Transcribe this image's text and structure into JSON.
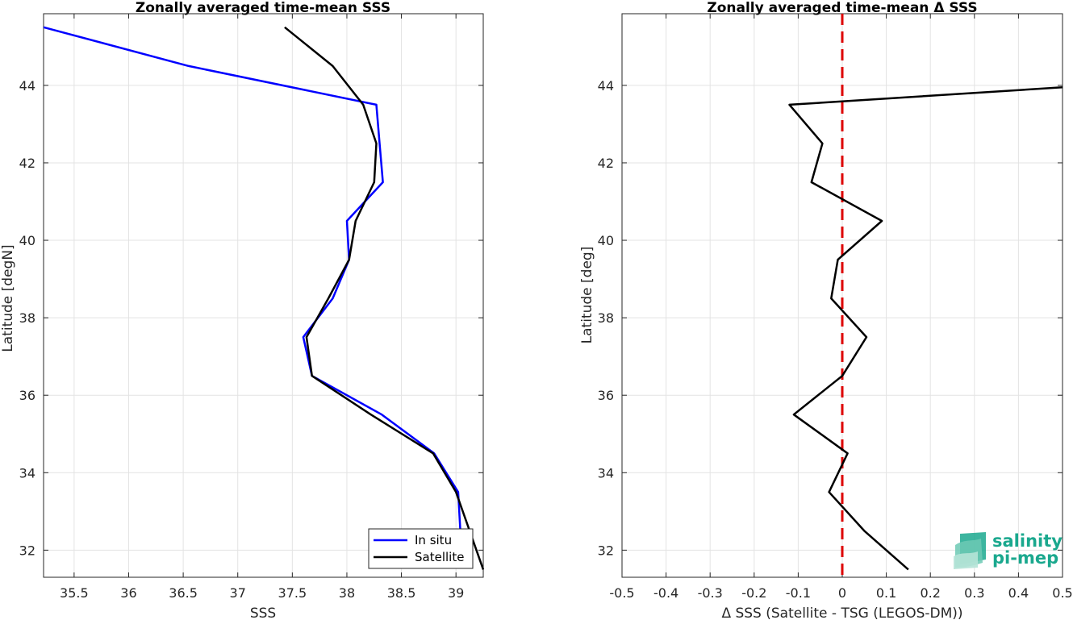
{
  "chart_data": [
    {
      "type": "line",
      "title": "Zonally averaged time-mean SSS",
      "xlabel": "SSS",
      "ylabel": "Latitude [degN]",
      "xlim": [
        35.22,
        39.25
      ],
      "ylim": [
        31.3,
        45.85
      ],
      "xticks": [
        35.5,
        36,
        36.5,
        37,
        37.5,
        38,
        38.5,
        39
      ],
      "xtick_labels": [
        "35.5",
        "36",
        "36.5",
        "37",
        "37.5",
        "38",
        "38.5",
        "39"
      ],
      "yticks": [
        32,
        34,
        36,
        38,
        40,
        42,
        44
      ],
      "ytick_labels": [
        "32",
        "34",
        "36",
        "38",
        "40",
        "42",
        "44"
      ],
      "grid": true,
      "legend_position": "bottom-right",
      "series": [
        {
          "name": "In situ",
          "color": "#0000ff",
          "x": [
            35.22,
            36.55,
            38.27,
            38.3,
            38.33,
            38.0,
            38.02,
            37.87,
            37.6,
            37.68,
            38.32,
            38.8,
            39.02,
            39.04
          ],
          "y": [
            45.5,
            44.5,
            43.5,
            42.5,
            41.5,
            40.5,
            39.5,
            38.5,
            37.5,
            36.5,
            35.5,
            34.5,
            33.5,
            32.5
          ]
        },
        {
          "name": "Satellite",
          "color": "#000000",
          "x": [
            37.43,
            37.87,
            38.15,
            38.27,
            38.25,
            38.08,
            38.02,
            37.83,
            37.63,
            37.68,
            38.22,
            38.79,
            39.0,
            39.25
          ],
          "y": [
            45.5,
            44.5,
            43.5,
            42.5,
            41.5,
            40.5,
            39.5,
            38.5,
            37.5,
            36.5,
            35.5,
            34.5,
            33.5,
            31.5
          ]
        }
      ]
    },
    {
      "type": "line",
      "title": "Zonally averaged time-mean Δ SSS",
      "xlabel": "Δ SSS (Satellite - TSG (LEGOS-DM))",
      "ylabel": "Latitude [deg]",
      "xlim": [
        -0.5,
        0.5
      ],
      "ylim": [
        31.3,
        45.85
      ],
      "xticks": [
        -0.5,
        -0.4,
        -0.3,
        -0.2,
        -0.1,
        0,
        0.1,
        0.2,
        0.3,
        0.4,
        0.5
      ],
      "xtick_labels": [
        "-0.5",
        "-0.4",
        "-0.3",
        "-0.2",
        "-0.1",
        "0",
        "0.1",
        "0.2",
        "0.3",
        "0.4",
        "0.5"
      ],
      "yticks": [
        32,
        34,
        36,
        38,
        40,
        42,
        44
      ],
      "ytick_labels": [
        "32",
        "34",
        "36",
        "38",
        "40",
        "42",
        "44"
      ],
      "grid": true,
      "reference_line": {
        "x": 0,
        "color": "#dd0000",
        "style": "dashed"
      },
      "series": [
        {
          "color": "#000000",
          "x": [
            0.5,
            -0.12,
            -0.045,
            -0.07,
            0.09,
            -0.01,
            -0.025,
            0.055,
            0.0,
            -0.11,
            0.012,
            -0.03,
            0.05,
            0.15
          ],
          "y": [
            43.95,
            43.5,
            42.5,
            41.5,
            40.5,
            39.5,
            38.5,
            37.5,
            36.5,
            35.5,
            34.5,
            33.5,
            32.5,
            31.5
          ]
        }
      ]
    }
  ],
  "logo": {
    "line1": "salinity",
    "line2": "pi-mep",
    "color": "#1aa88e"
  }
}
